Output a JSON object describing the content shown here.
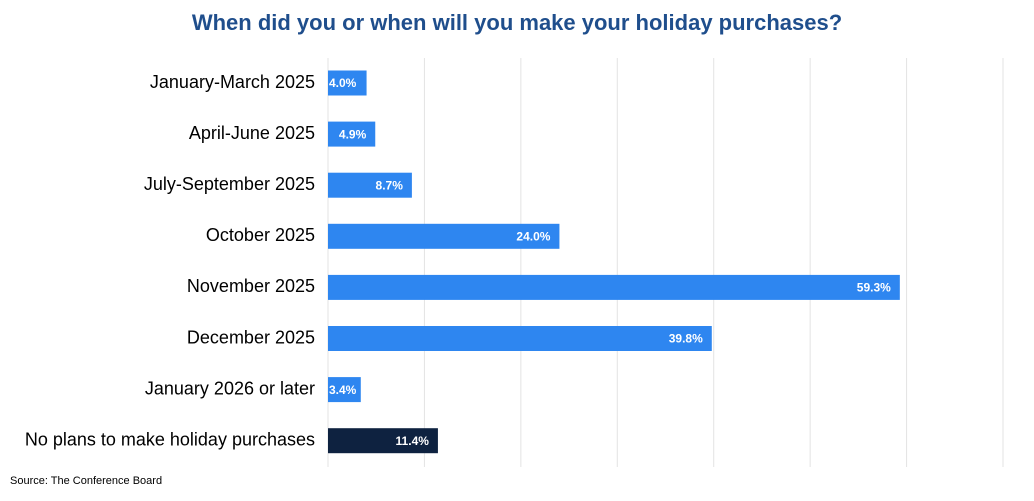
{
  "chart_data": {
    "type": "hbar",
    "title": "When did you or when will you make your holiday purchases?",
    "categories": [
      "January-March 2025",
      "April-June 2025",
      "July-September 2025",
      "October 2025",
      "November 2025",
      "December 2025",
      "January 2026 or later",
      "No plans to make holiday purchases"
    ],
    "values": [
      4.0,
      4.9,
      8.7,
      24.0,
      59.3,
      39.8,
      3.4,
      11.4
    ],
    "value_labels": [
      "4.0%",
      "4.9%",
      "8.7%",
      "24.0%",
      "59.3%",
      "39.8%",
      "3.4%",
      "11.4%"
    ],
    "colors": [
      "#2e86f0",
      "#2e86f0",
      "#2e86f0",
      "#2e86f0",
      "#2e86f0",
      "#2e86f0",
      "#2e86f0",
      "#0e2240"
    ],
    "xlim": [
      0,
      70
    ],
    "xticks": [
      0,
      10,
      20,
      30,
      40,
      50,
      60,
      70
    ],
    "grid": true,
    "source": "Source: The Conference Board"
  }
}
